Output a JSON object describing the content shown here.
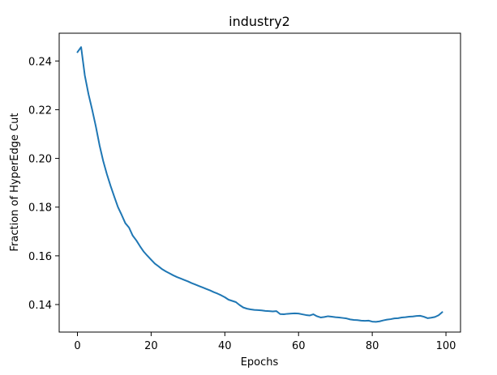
{
  "chart_data": {
    "type": "line",
    "title": "industry2",
    "xlabel": "Epochs",
    "ylabel": "Fraction of HyperEdge Cut",
    "xlim": [
      -4.95,
      103.95
    ],
    "ylim": [
      0.1287,
      0.2514
    ],
    "xticks": [
      0,
      20,
      40,
      60,
      80,
      100
    ],
    "yticks": [
      0.14,
      0.16,
      0.18,
      0.2,
      0.22,
      0.24
    ],
    "xtick_labels": [
      "0",
      "20",
      "40",
      "60",
      "80",
      "100"
    ],
    "ytick_labels": [
      "0.14",
      "0.16",
      "0.18",
      "0.20",
      "0.22",
      "0.24"
    ],
    "grid": false,
    "line_color": "#1f77b4",
    "series": [
      {
        "x": [
          0,
          1,
          2,
          3,
          4,
          5,
          6,
          7,
          8,
          9,
          10,
          11,
          12,
          13,
          14,
          15,
          16,
          17,
          18,
          19,
          20,
          21,
          22,
          23,
          24,
          25,
          26,
          27,
          28,
          29,
          30,
          31,
          32,
          33,
          34,
          35,
          36,
          37,
          38,
          39,
          40,
          41,
          42,
          43,
          44,
          45,
          46,
          47,
          48,
          49,
          50,
          51,
          52,
          53,
          54,
          55,
          56,
          57,
          58,
          59,
          60,
          61,
          62,
          63,
          64,
          65,
          66,
          67,
          68,
          69,
          70,
          71,
          72,
          73,
          74,
          75,
          76,
          77,
          78,
          79,
          80,
          81,
          82,
          83,
          84,
          85,
          86,
          87,
          88,
          89,
          90,
          91,
          92,
          93,
          94,
          95,
          96,
          97,
          98,
          99
        ],
        "y": [
          0.2436,
          0.2457,
          0.2341,
          0.2264,
          0.22,
          0.2131,
          0.2054,
          0.1989,
          0.1935,
          0.1887,
          0.1843,
          0.18,
          0.1768,
          0.1734,
          0.1716,
          0.1683,
          0.1663,
          0.1639,
          0.1617,
          0.16,
          0.1584,
          0.1568,
          0.1557,
          0.1545,
          0.1536,
          0.1528,
          0.152,
          0.1513,
          0.1507,
          0.1501,
          0.1495,
          0.1488,
          0.1482,
          0.1476,
          0.147,
          0.1464,
          0.1458,
          0.1451,
          0.1445,
          0.1438,
          0.143,
          0.142,
          0.1415,
          0.141,
          0.1398,
          0.1388,
          0.1383,
          0.138,
          0.1378,
          0.1377,
          0.1376,
          0.1374,
          0.1373,
          0.1372,
          0.1373,
          0.1361,
          0.136,
          0.1362,
          0.1363,
          0.1364,
          0.1363,
          0.136,
          0.1357,
          0.1355,
          0.136,
          0.1352,
          0.1347,
          0.1349,
          0.1352,
          0.135,
          0.1348,
          0.1347,
          0.1345,
          0.1343,
          0.1339,
          0.1337,
          0.1336,
          0.1334,
          0.1333,
          0.1334,
          0.133,
          0.1329,
          0.1331,
          0.1335,
          0.1338,
          0.134,
          0.1343,
          0.1344,
          0.1347,
          0.1348,
          0.135,
          0.1351,
          0.1353,
          0.1354,
          0.135,
          0.1344,
          0.1346,
          0.1349,
          0.1356,
          0.1369
        ]
      }
    ]
  }
}
